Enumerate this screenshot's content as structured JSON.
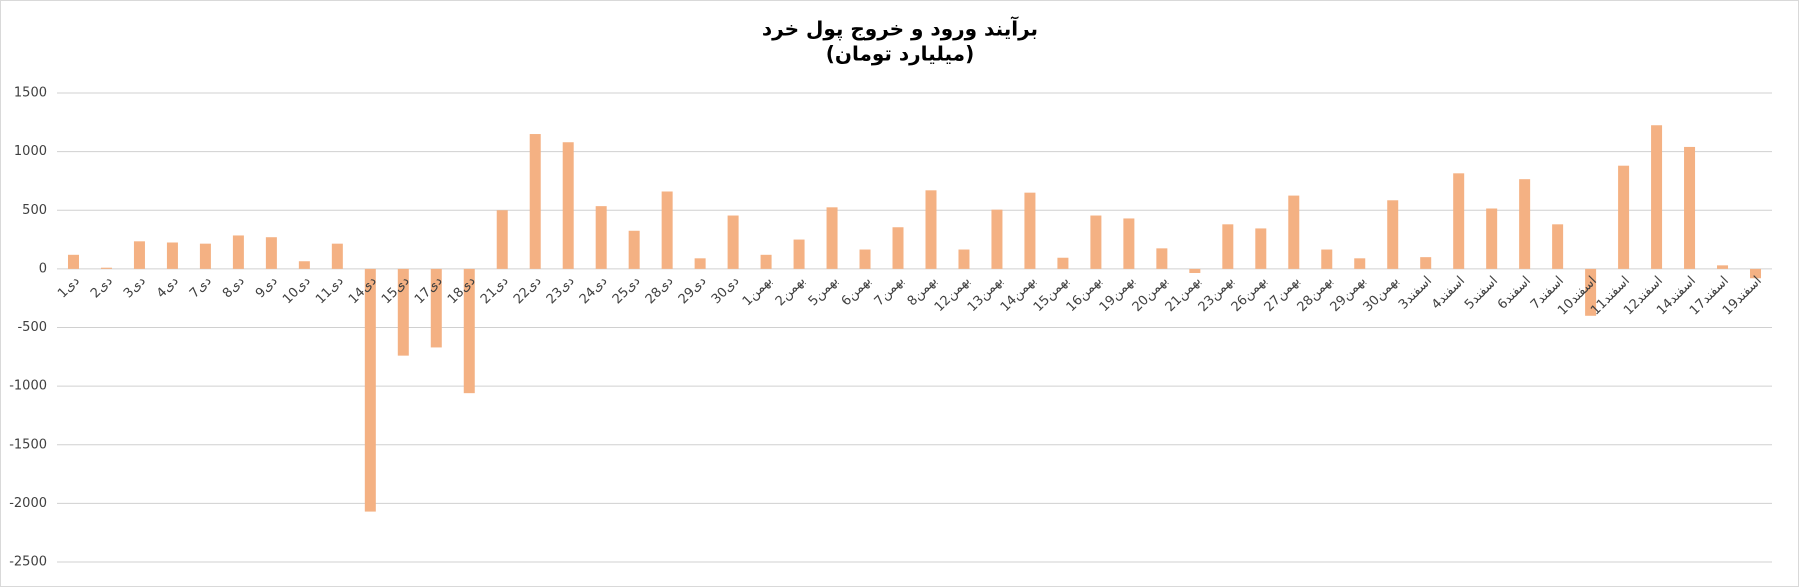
{
  "chart_data": {
    "type": "bar",
    "title": "برآیند ورود و خروج پول خرد",
    "subtitle": "(میلیارد تومان)",
    "categories": [
      "1دی",
      "2دی",
      "3دی",
      "4دی",
      "7دی",
      "8دی",
      "9دی",
      "10دی",
      "11دی",
      "14دی",
      "15دی",
      "17دی",
      "18دی",
      "21دی",
      "22دی",
      "23دی",
      "24دی",
      "25دی",
      "28دی",
      "29دی",
      "30دی",
      "1بهمن",
      "2بهمن",
      "5بهمن",
      "6بهمن",
      "7بهمن",
      "8بهمن",
      "12بهمن",
      "13بهمن",
      "14بهمن",
      "15بهمن",
      "16بهمن",
      "19بهمن",
      "20بهمن",
      "21بهمن",
      "23بهمن",
      "26بهمن",
      "27بهمن",
      "28بهمن",
      "29بهمن",
      "30بهمن",
      "3اسفند",
      "4اسفند",
      "5اسفند",
      "6اسفند",
      "7اسفند",
      "10اسفند",
      "11اسفند",
      "12اسفند",
      "14اسفند",
      "17اسفند",
      "19اسفند"
    ],
    "values": [
      120,
      10,
      235,
      225,
      215,
      285,
      270,
      65,
      215,
      -2070,
      -740,
      -670,
      -1060,
      500,
      1150,
      1080,
      535,
      325,
      660,
      90,
      455,
      120,
      250,
      525,
      165,
      355,
      670,
      165,
      505,
      650,
      95,
      455,
      430,
      175,
      -35,
      380,
      345,
      625,
      165,
      90,
      585,
      100,
      815,
      515,
      765,
      380,
      -400,
      880,
      1225,
      1040,
      30,
      -80
    ],
    "color": "#f4b183",
    "ylim": [
      -2500,
      1500
    ],
    "yticks": [
      -2500,
      -2000,
      -1500,
      -1000,
      -500,
      0,
      500,
      1000,
      1500
    ],
    "grid": true
  }
}
